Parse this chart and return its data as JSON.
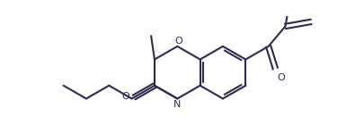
{
  "line_color": "#2b2b4e",
  "bg_color": "#ffffff",
  "lw": 1.5,
  "fig_width": 4.05,
  "fig_height": 1.5,
  "dpi": 100,
  "xlim": [
    0,
    405
  ],
  "ylim": [
    0,
    150
  ]
}
